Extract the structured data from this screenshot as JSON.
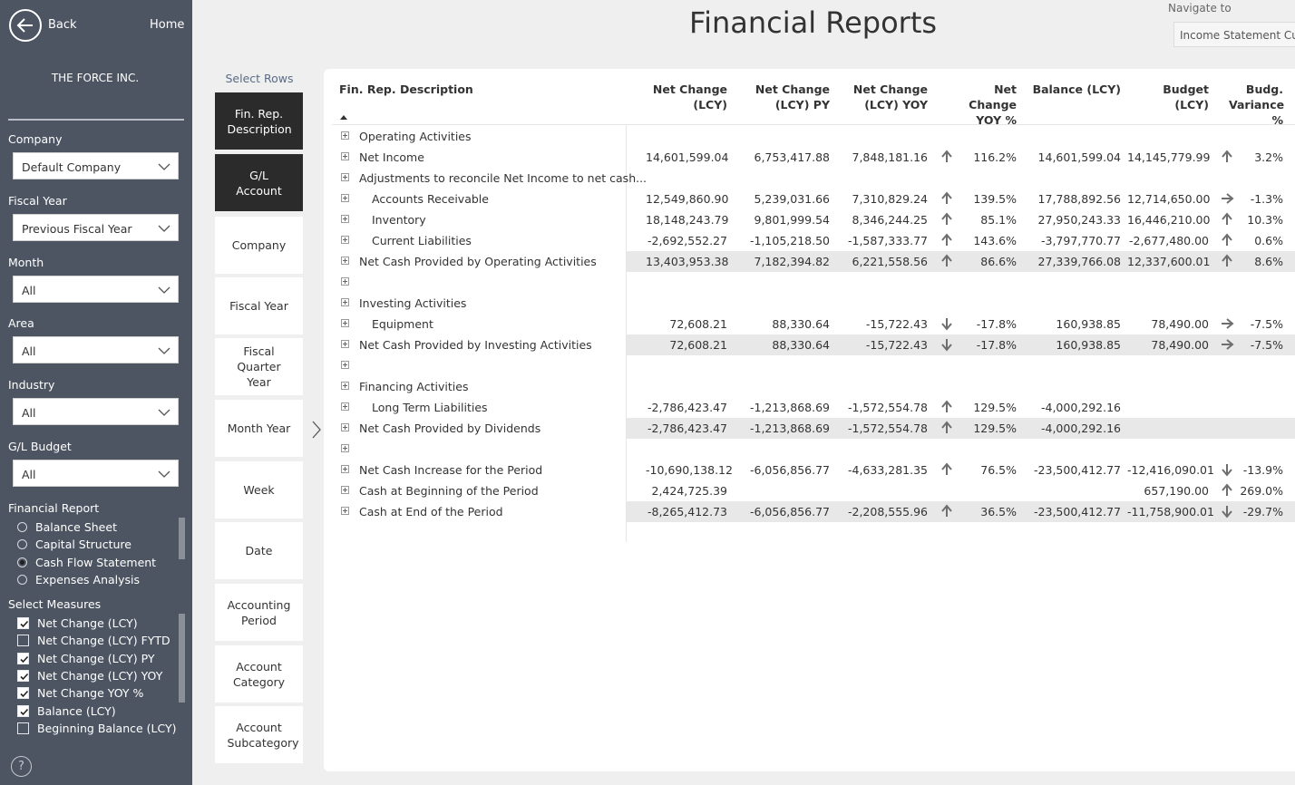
{
  "sidebar": {
    "back_label": "Back",
    "home_label": "Home",
    "company_name": "THE FORCE INC.",
    "filters": [
      {
        "label": "Company",
        "value": "Default Company"
      },
      {
        "label": "Fiscal Year",
        "value": "Previous Fiscal Year"
      },
      {
        "label": "Month",
        "value": "All"
      },
      {
        "label": "Area",
        "value": "All"
      },
      {
        "label": "Industry",
        "value": "All"
      },
      {
        "label": "G/L Budget",
        "value": "All"
      }
    ],
    "financial_report": {
      "label": "Financial Report",
      "options": [
        {
          "label": "Balance Sheet",
          "selected": false
        },
        {
          "label": "Capital Structure",
          "selected": false
        },
        {
          "label": "Cash Flow Statement",
          "selected": true
        },
        {
          "label": "Expenses Analysis",
          "selected": false
        }
      ]
    },
    "measures": {
      "label": "Select Measures",
      "options": [
        {
          "label": "Net Change (LCY)",
          "checked": true
        },
        {
          "label": "Net Change (LCY) FYTD",
          "checked": false
        },
        {
          "label": "Net Change (LCY) PY",
          "checked": true
        },
        {
          "label": "Net Change (LCY) YOY",
          "checked": true
        },
        {
          "label": "Net Change YOY %",
          "checked": true
        },
        {
          "label": "Balance (LCY)",
          "checked": true
        },
        {
          "label": "Beginning Balance (LCY)",
          "checked": false
        }
      ]
    },
    "help_label": "?"
  },
  "header": {
    "title": "Financial Reports",
    "navigate_label": "Navigate to",
    "navigate_value": "Income Statement Cube"
  },
  "select_rows": {
    "label": "Select Rows",
    "items": [
      {
        "label": "Fin. Rep. Description",
        "active": true
      },
      {
        "label": "G/L Account",
        "active": true
      },
      {
        "label": "Company",
        "active": false
      },
      {
        "label": "Fiscal Year",
        "active": false
      },
      {
        "label": "Fiscal Quarter Year",
        "active": false
      },
      {
        "label": "Month Year",
        "active": false
      },
      {
        "label": "Week",
        "active": false
      },
      {
        "label": "Date",
        "active": false
      },
      {
        "label": "Accounting Period",
        "active": false
      },
      {
        "label": "Account Category",
        "active": false
      },
      {
        "label": "Account Subcategory",
        "active": false
      }
    ]
  },
  "colors": {
    "sidebar_bg": "#4d5563",
    "active_row_button": "#2b2b2b",
    "total_row_shade": "#e8e8e8",
    "indicator_arrow": "#6e6e6e"
  },
  "table": {
    "columns": [
      {
        "key": "desc",
        "label": "Fin. Rep. Description"
      },
      {
        "key": "nc",
        "label": "Net Change (LCY)"
      },
      {
        "key": "ncpy",
        "label": "Net Change (LCY) PY"
      },
      {
        "key": "ncyoy",
        "label": "Net Change (LCY) YOY"
      },
      {
        "key": "yoypct",
        "label": "Net Change YOY %"
      },
      {
        "key": "bal",
        "label": "Balance (LCY)"
      },
      {
        "key": "bud",
        "label": "Budget (LCY)"
      },
      {
        "key": "bvar",
        "label": "Budg. Variance %"
      }
    ],
    "rows": [
      {
        "desc": "Operating Activities",
        "indent": 0,
        "total": false,
        "nc": "",
        "ncpy": "",
        "ncyoy": "",
        "yoy_icon": "",
        "yoypct": "",
        "bal": "",
        "bud": "",
        "bud_icon": "",
        "bvar": ""
      },
      {
        "desc": "Net Income",
        "indent": 0,
        "total": false,
        "nc": "14,601,599.04",
        "ncpy": "6,753,417.88",
        "ncyoy": "7,848,181.16",
        "yoy_icon": "up-arrow-icon",
        "yoypct": "116.2%",
        "bal": "14,601,599.04",
        "bud": "14,145,779.99",
        "bud_icon": "up-arrow-icon",
        "bvar": "3.2%"
      },
      {
        "desc": "Adjustments to reconcile Net Income to net cash...",
        "indent": 0,
        "total": false,
        "nc": "",
        "ncpy": "",
        "ncyoy": "",
        "yoy_icon": "",
        "yoypct": "",
        "bal": "",
        "bud": "",
        "bud_icon": "",
        "bvar": ""
      },
      {
        "desc": "Accounts Receivable",
        "indent": 1,
        "total": false,
        "nc": "12,549,860.90",
        "ncpy": "5,239,031.66",
        "ncyoy": "7,310,829.24",
        "yoy_icon": "up-arrow-icon",
        "yoypct": "139.5%",
        "bal": "17,788,892.56",
        "bud": "12,714,650.00",
        "bud_icon": "right-arrow-icon",
        "bvar": "-1.3%"
      },
      {
        "desc": "Inventory",
        "indent": 1,
        "total": false,
        "nc": "18,148,243.79",
        "ncpy": "9,801,999.54",
        "ncyoy": "8,346,244.25",
        "yoy_icon": "up-arrow-icon",
        "yoypct": "85.1%",
        "bal": "27,950,243.33",
        "bud": "16,446,210.00",
        "bud_icon": "up-arrow-icon",
        "bvar": "10.3%"
      },
      {
        "desc": "Current Liabilities",
        "indent": 1,
        "total": false,
        "nc": "-2,692,552.27",
        "ncpy": "-1,105,218.50",
        "ncyoy": "-1,587,333.77",
        "yoy_icon": "up-arrow-icon",
        "yoypct": "143.6%",
        "bal": "-3,797,770.77",
        "bud": "-2,677,480.00",
        "bud_icon": "up-arrow-icon",
        "bvar": "0.6%"
      },
      {
        "desc": "Net Cash Provided by Operating Activities",
        "indent": 0,
        "total": true,
        "nc": "13,403,953.38",
        "ncpy": "7,182,394.82",
        "ncyoy": "6,221,558.56",
        "yoy_icon": "up-arrow-icon",
        "yoypct": "86.6%",
        "bal": "27,339,766.08",
        "bud": "12,337,600.01",
        "bud_icon": "up-arrow-icon",
        "bvar": "8.6%"
      },
      {
        "desc": "",
        "indent": 0,
        "total": false,
        "nc": "",
        "ncpy": "",
        "ncyoy": "",
        "yoy_icon": "",
        "yoypct": "",
        "bal": "",
        "bud": "",
        "bud_icon": "",
        "bvar": ""
      },
      {
        "desc": "Investing Activities",
        "indent": 0,
        "total": false,
        "nc": "",
        "ncpy": "",
        "ncyoy": "",
        "yoy_icon": "",
        "yoypct": "",
        "bal": "",
        "bud": "",
        "bud_icon": "",
        "bvar": ""
      },
      {
        "desc": "Equipment",
        "indent": 1,
        "total": false,
        "nc": "72,608.21",
        "ncpy": "88,330.64",
        "ncyoy": "-15,722.43",
        "yoy_icon": "down-arrow-icon",
        "yoypct": "-17.8%",
        "bal": "160,938.85",
        "bud": "78,490.00",
        "bud_icon": "right-arrow-icon",
        "bvar": "-7.5%"
      },
      {
        "desc": "Net Cash Provided by Investing Activities",
        "indent": 0,
        "total": true,
        "nc": "72,608.21",
        "ncpy": "88,330.64",
        "ncyoy": "-15,722.43",
        "yoy_icon": "down-arrow-icon",
        "yoypct": "-17.8%",
        "bal": "160,938.85",
        "bud": "78,490.00",
        "bud_icon": "right-arrow-icon",
        "bvar": "-7.5%"
      },
      {
        "desc": "",
        "indent": 0,
        "total": false,
        "nc": "",
        "ncpy": "",
        "ncyoy": "",
        "yoy_icon": "",
        "yoypct": "",
        "bal": "",
        "bud": "",
        "bud_icon": "",
        "bvar": ""
      },
      {
        "desc": "Financing Activities",
        "indent": 0,
        "total": false,
        "nc": "",
        "ncpy": "",
        "ncyoy": "",
        "yoy_icon": "",
        "yoypct": "",
        "bal": "",
        "bud": "",
        "bud_icon": "",
        "bvar": ""
      },
      {
        "desc": "Long Term Liabilities",
        "indent": 1,
        "total": false,
        "nc": "-2,786,423.47",
        "ncpy": "-1,213,868.69",
        "ncyoy": "-1,572,554.78",
        "yoy_icon": "up-arrow-icon",
        "yoypct": "129.5%",
        "bal": "-4,000,292.16",
        "bud": "",
        "bud_icon": "",
        "bvar": ""
      },
      {
        "desc": "Net Cash Provided by Dividends",
        "indent": 0,
        "total": true,
        "nc": "-2,786,423.47",
        "ncpy": "-1,213,868.69",
        "ncyoy": "-1,572,554.78",
        "yoy_icon": "up-arrow-icon",
        "yoypct": "129.5%",
        "bal": "-4,000,292.16",
        "bud": "",
        "bud_icon": "",
        "bvar": ""
      },
      {
        "desc": "",
        "indent": 0,
        "total": false,
        "nc": "",
        "ncpy": "",
        "ncyoy": "",
        "yoy_icon": "",
        "yoypct": "",
        "bal": "",
        "bud": "",
        "bud_icon": "",
        "bvar": ""
      },
      {
        "desc": "Net Cash Increase for the Period",
        "indent": 0,
        "total": false,
        "nc": "-10,690,138.12",
        "ncpy": "-6,056,856.77",
        "ncyoy": "-4,633,281.35",
        "yoy_icon": "up-arrow-icon",
        "yoypct": "76.5%",
        "bal": "-23,500,412.77",
        "bud": "-12,416,090.01",
        "bud_icon": "down-arrow-icon",
        "bvar": "-13.9%"
      },
      {
        "desc": "Cash at Beginning of the Period",
        "indent": 0,
        "total": false,
        "nc": "2,424,725.39",
        "ncpy": "",
        "ncyoy": "",
        "yoy_icon": "",
        "yoypct": "",
        "bal": "",
        "bud": "657,190.00",
        "bud_icon": "up-arrow-icon",
        "bvar": "269.0%"
      },
      {
        "desc": "Cash at End of the Period",
        "indent": 0,
        "total": true,
        "nc": "-8,265,412.73",
        "ncpy": "-6,056,856.77",
        "ncyoy": "-2,208,555.96",
        "yoy_icon": "up-arrow-icon",
        "yoypct": "36.5%",
        "bal": "-23,500,412.77",
        "bud": "-11,758,900.01",
        "bud_icon": "down-arrow-icon",
        "bvar": "-29.7%"
      }
    ]
  }
}
